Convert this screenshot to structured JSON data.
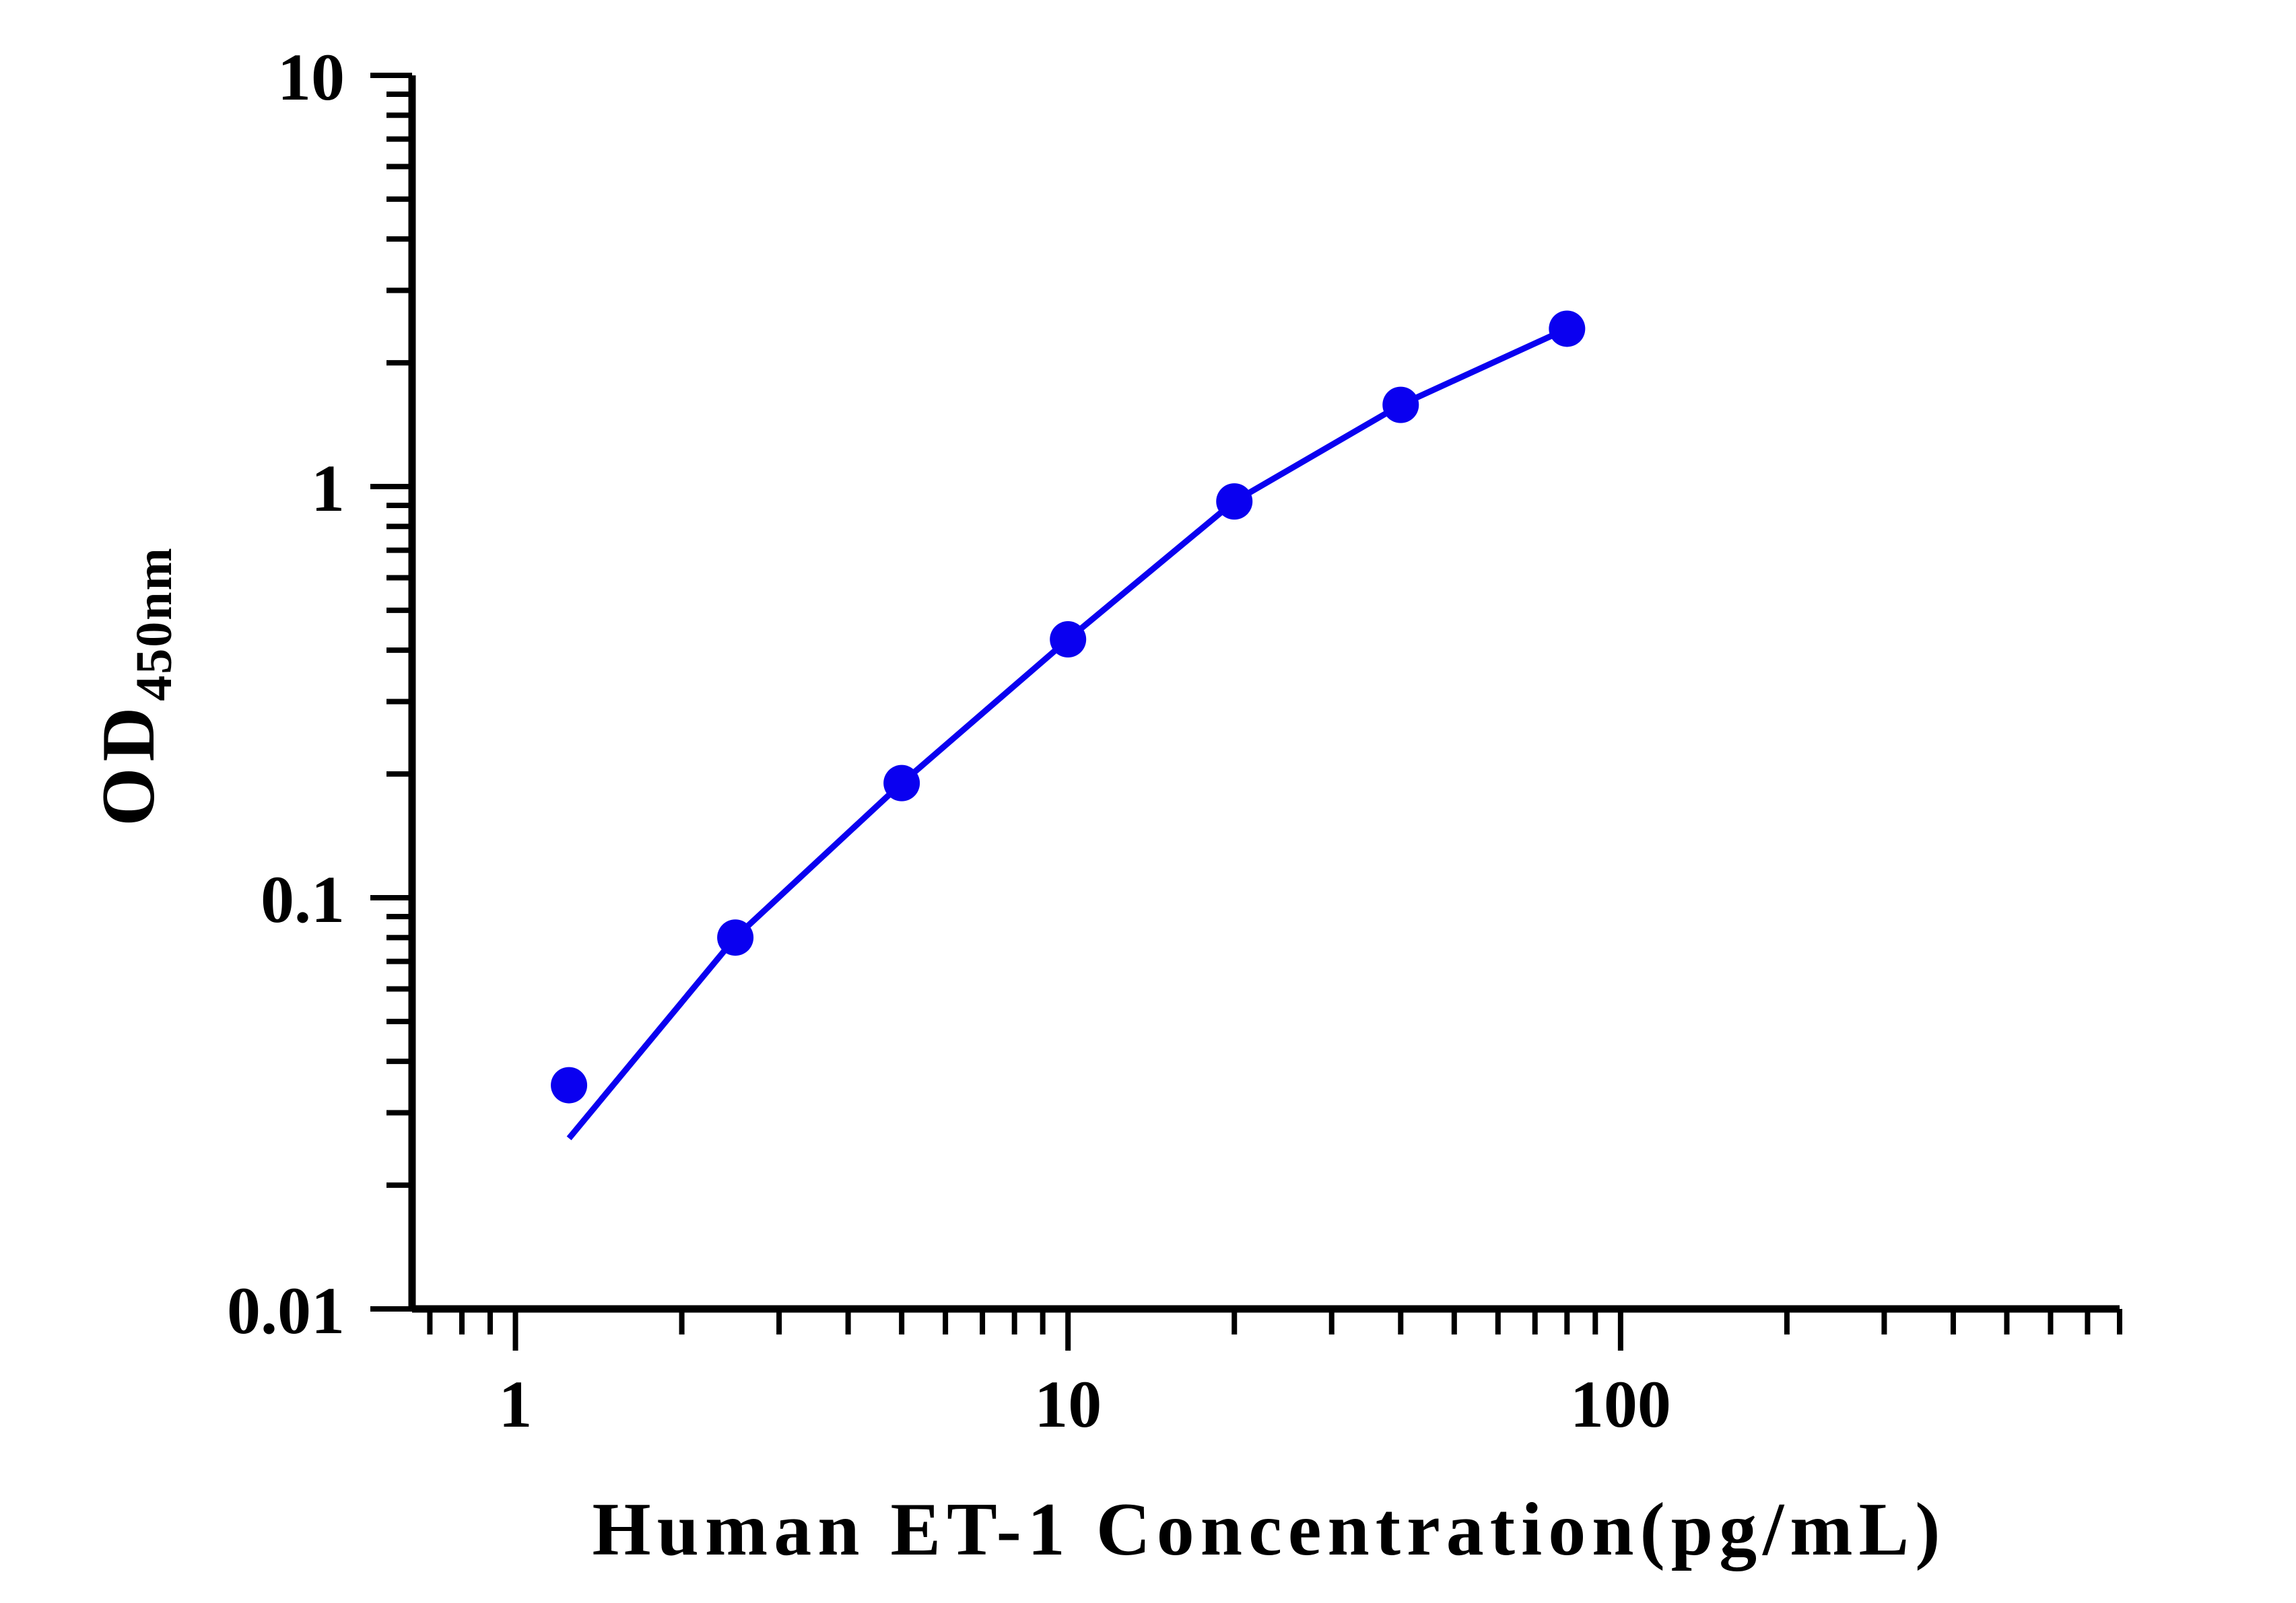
{
  "chart_data": {
    "type": "scatter",
    "xlabel": "Human ET-1 Concentration(pg/mL)",
    "ylabel": "OD",
    "ylabel_subscript": "450nm",
    "x_scale": "log",
    "y_scale": "log",
    "xlim": [
      0.65,
      800
    ],
    "ylim": [
      0.01,
      10
    ],
    "x_ticks": [
      "1",
      "10",
      "100"
    ],
    "y_ticks": [
      "0.01",
      "0.1",
      "1",
      "10"
    ],
    "grid": false,
    "colors": {
      "series": "#0a00f0",
      "axis": "#000000"
    },
    "series": [
      {
        "points": [
          {
            "x": 1.25,
            "y": 0.035
          },
          {
            "x": 2.5,
            "y": 0.08
          },
          {
            "x": 5,
            "y": 0.19
          },
          {
            "x": 10,
            "y": 0.425
          },
          {
            "x": 20,
            "y": 0.92
          },
          {
            "x": 40,
            "y": 1.58
          },
          {
            "x": 80,
            "y": 2.42
          }
        ],
        "fit_curve": [
          {
            "x": 1.25,
            "y": 0.026
          },
          {
            "x": 2.5,
            "y": 0.08
          },
          {
            "x": 5,
            "y": 0.19
          },
          {
            "x": 10,
            "y": 0.425
          },
          {
            "x": 20,
            "y": 0.92
          },
          {
            "x": 40,
            "y": 1.58
          },
          {
            "x": 80,
            "y": 2.42
          }
        ]
      }
    ]
  }
}
